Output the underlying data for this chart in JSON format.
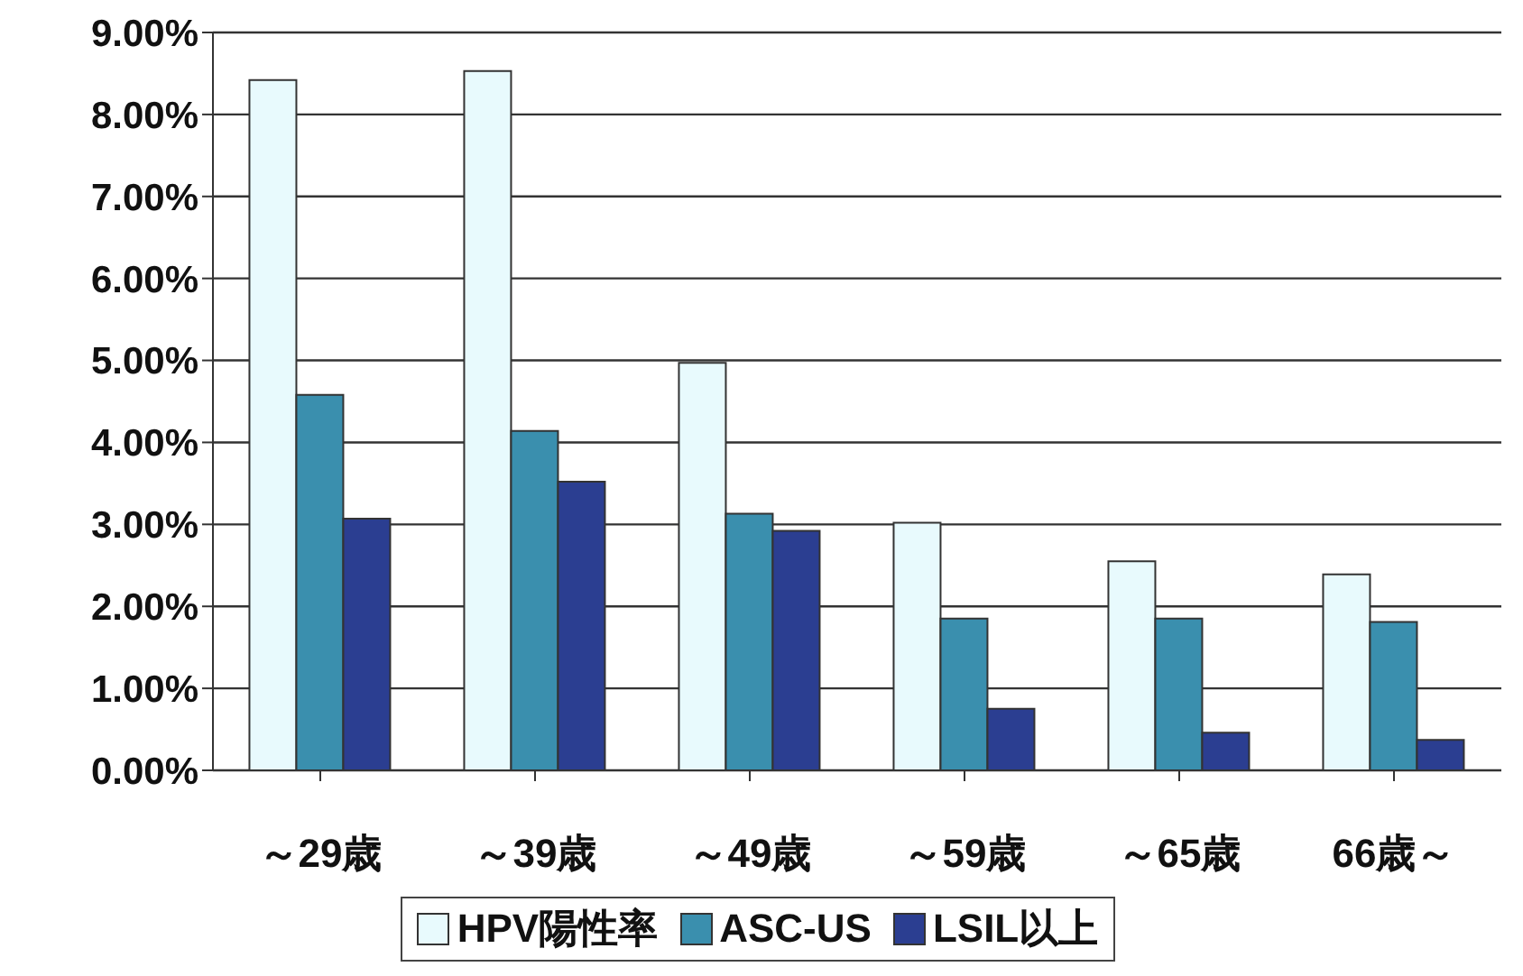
{
  "chart_data": {
    "type": "bar",
    "categories": [
      "～29歳",
      "～39歳",
      "～49歳",
      "～59歳",
      "～65歳",
      "66歳～"
    ],
    "series": [
      {
        "name": "HPV陽性率",
        "color": "#e8fafd",
        "values": [
          8.42,
          8.53,
          4.97,
          3.02,
          2.55,
          2.39
        ]
      },
      {
        "name": "ASC-US",
        "color": "#3a8fae",
        "values": [
          4.58,
          4.14,
          3.13,
          1.85,
          1.85,
          1.81
        ]
      },
      {
        "name": "LSIL以上",
        "color": "#2b3e91",
        "values": [
          3.07,
          3.52,
          2.92,
          0.75,
          0.46,
          0.37
        ]
      }
    ],
    "ylim": [
      0,
      9
    ],
    "yticks": [
      {
        "value": 0,
        "label": "0.00%"
      },
      {
        "value": 1,
        "label": "1.00%"
      },
      {
        "value": 2,
        "label": "2.00%"
      },
      {
        "value": 3,
        "label": "3.00%"
      },
      {
        "value": 4,
        "label": "4.00%"
      },
      {
        "value": 5,
        "label": "5.00%"
      },
      {
        "value": 6,
        "label": "6.00%"
      },
      {
        "value": 7,
        "label": "7.00%"
      },
      {
        "value": 8,
        "label": "8.00%"
      },
      {
        "value": 9,
        "label": "9.00%"
      }
    ],
    "grid": "y",
    "legend": "bottom"
  }
}
